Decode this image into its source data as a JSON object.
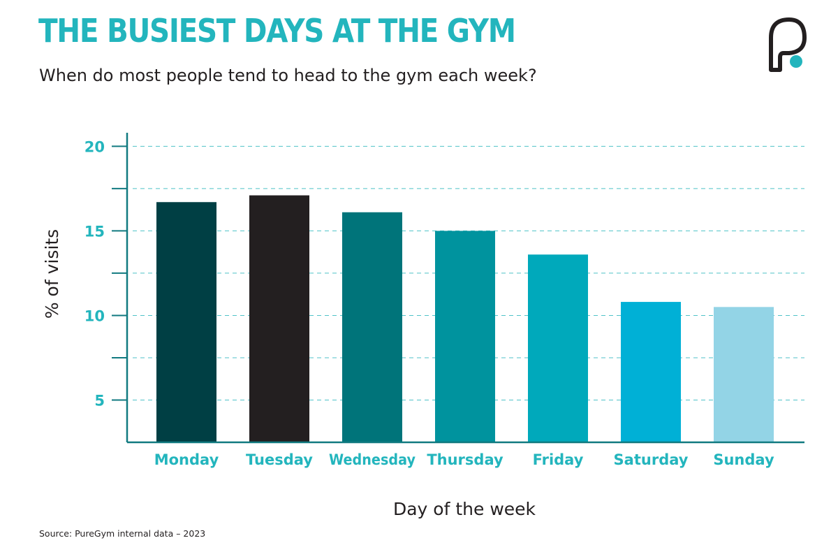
{
  "header": {
    "title": "THE BUSIEST DAYS AT THE GYM",
    "subtitle": "When do most people tend to head to the gym each week?"
  },
  "footer": {
    "source": "Source: PureGym internal data – 2023"
  },
  "logo": {
    "icon": "puregym-logo-icon"
  },
  "colors": {
    "accent": "#23b5bd",
    "text": "#231f20",
    "axis": "#117a80",
    "grid": "#4fc2c8"
  },
  "chart_data": {
    "type": "bar",
    "categories": [
      "Monday",
      "Tuesday",
      "Wednesday",
      "Thursday",
      "Friday",
      "Saturday",
      "Sunday"
    ],
    "values": [
      16.7,
      17.1,
      16.1,
      15.0,
      13.6,
      10.8,
      10.5
    ],
    "colors": [
      "#003f44",
      "#231f20",
      "#00747a",
      "#00939e",
      "#00a9bb",
      "#00b0d6",
      "#93d4e6"
    ],
    "title": "",
    "xlabel": "Day of the week",
    "ylabel": "% of visits",
    "ylim": [
      2.5,
      20.8
    ],
    "yticks": [
      5,
      10,
      15,
      20
    ],
    "gridlines": [
      5,
      7.5,
      10,
      12.5,
      15,
      17.5,
      20
    ],
    "grid": true,
    "grid_style": "dashed"
  }
}
